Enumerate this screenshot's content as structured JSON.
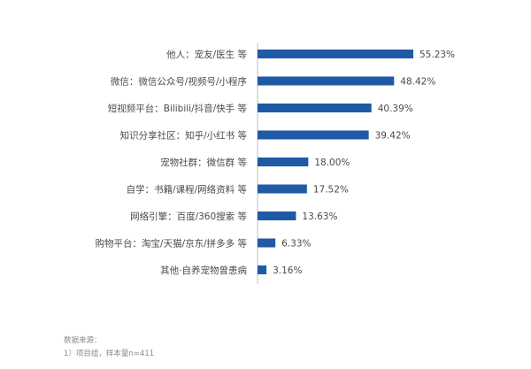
{
  "chart_data": {
    "type": "bar",
    "orientation": "horizontal",
    "categories": [
      "他人：宠友/医生 等",
      "微信：微信公众号/视频号/小程序",
      "短视频平台：Bilibili/抖音/快手 等",
      "知识分享社区：知乎/小红书 等",
      "宠物社群：微信群 等",
      "自学：书籍/课程/网络资料 等",
      "网络引擎：百度/360搜索 等",
      "购物平台：淘宝/天猫/京东/拼多多 等",
      "其他·自养宠物曾患病"
    ],
    "values": [
      55.23,
      48.42,
      40.39,
      39.42,
      18.0,
      17.52,
      13.63,
      6.33,
      3.16
    ],
    "value_labels": [
      "55.23%",
      "48.42%",
      "40.39%",
      "39.42%",
      "18.00%",
      "17.52%",
      "13.63%",
      "6.33%",
      "3.16%"
    ],
    "xlim": [
      0,
      60
    ],
    "unit": "%",
    "grid": false,
    "legend": "none",
    "bar_color": "#1f5aa6"
  },
  "source": {
    "line1": "数据来源：",
    "line2": "1）项目组，样本量n=411"
  }
}
